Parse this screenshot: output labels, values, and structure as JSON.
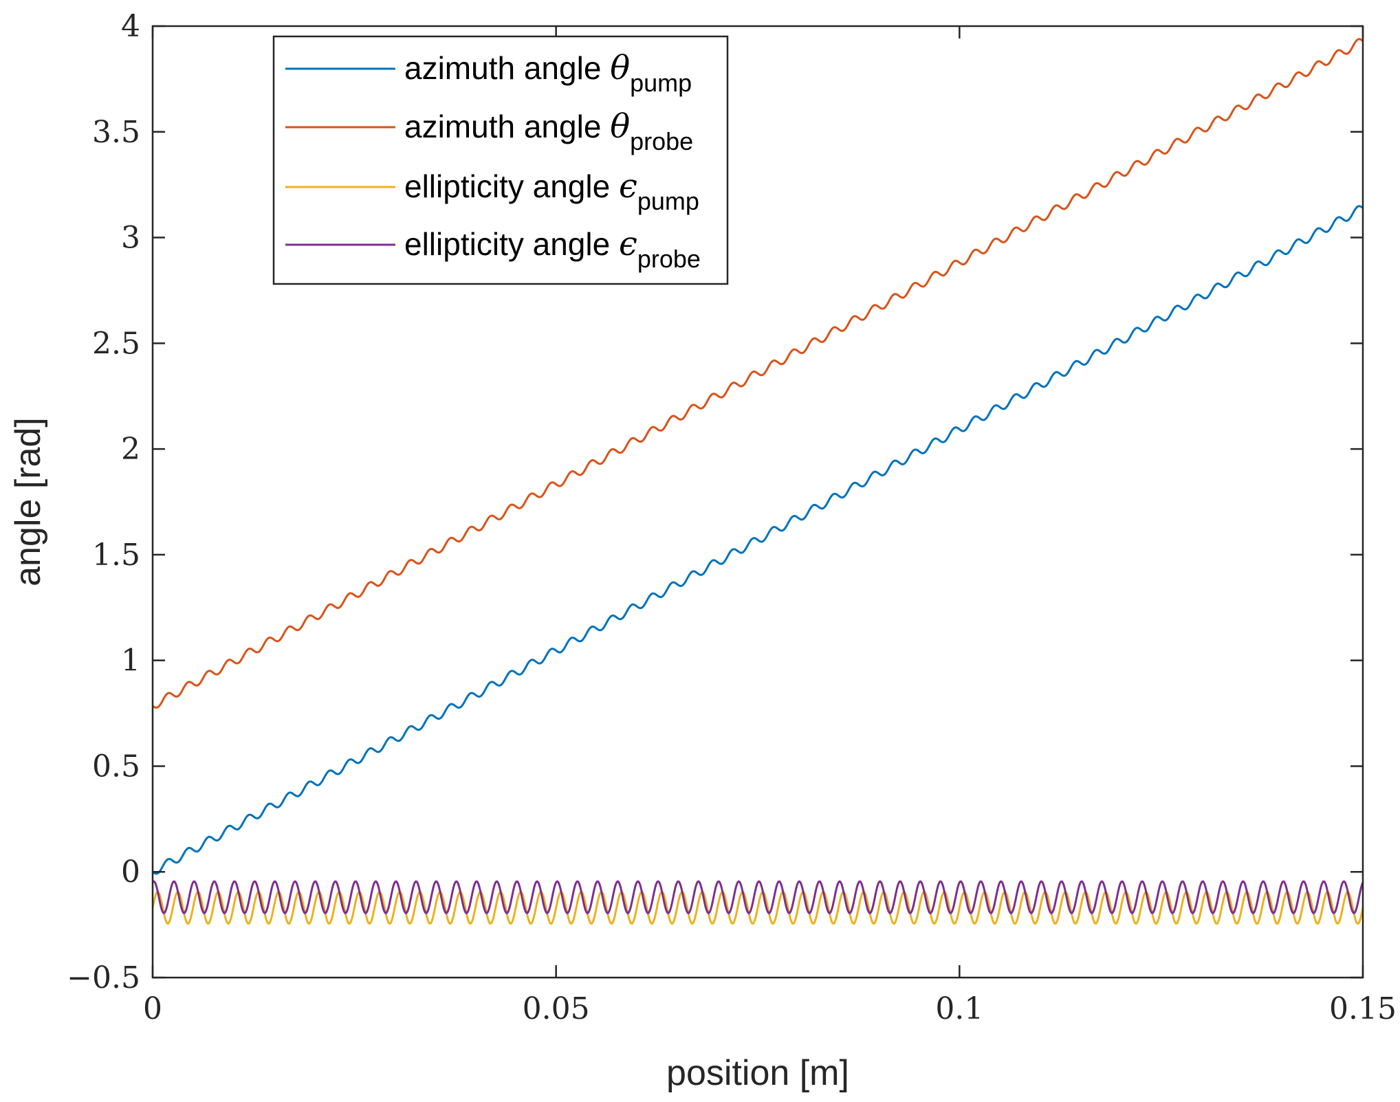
{
  "chart_data": {
    "type": "line",
    "title": "",
    "xlabel": "position [m]",
    "ylabel": "angle [rad]",
    "xlim": [
      0,
      0.15
    ],
    "ylim": [
      -0.5,
      4
    ],
    "xticks": [
      0,
      0.05,
      0.1,
      0.15
    ],
    "xtick_labels": [
      "0",
      "0.05",
      "0.1",
      "0.15"
    ],
    "yticks": [
      -0.5,
      0,
      0.5,
      1,
      1.5,
      2,
      2.5,
      3,
      3.5,
      4
    ],
    "ytick_labels": [
      "−0.5",
      "0",
      "0.5",
      "1",
      "1.5",
      "2",
      "2.5",
      "3",
      "3.5",
      "4"
    ],
    "grid": false,
    "legend_position": "top-left",
    "oscillation_cycles": 60,
    "series": [
      {
        "name": "azimuth angle θpump",
        "label_main": "azimuth angle ",
        "label_symbol": "θ",
        "label_sub": "pump",
        "color": "#0072BD",
        "start_value": 0.0,
        "end_value": 3.14,
        "ripple_amplitude": 0.02
      },
      {
        "name": "azimuth angle θprobe",
        "label_main": "azimuth angle ",
        "label_symbol": "θ",
        "label_sub": "probe",
        "color": "#D95319",
        "start_value": 0.785,
        "end_value": 3.93,
        "ripple_amplitude": 0.02
      },
      {
        "name": "ellipticity angle ϵpump",
        "label_main": "ellipticity angle ",
        "label_symbol": "ϵ",
        "label_sub": "pump",
        "color": "#EDB120",
        "center_value": -0.17,
        "ripple_amplitude": 0.075,
        "phase": 0.0
      },
      {
        "name": "ellipticity angle ϵprobe",
        "label_main": "ellipticity angle ",
        "label_symbol": "ϵ",
        "label_sub": "probe",
        "color": "#7E2F8E",
        "center_value": -0.12,
        "ripple_amplitude": 0.075,
        "phase": 1.2
      }
    ]
  }
}
